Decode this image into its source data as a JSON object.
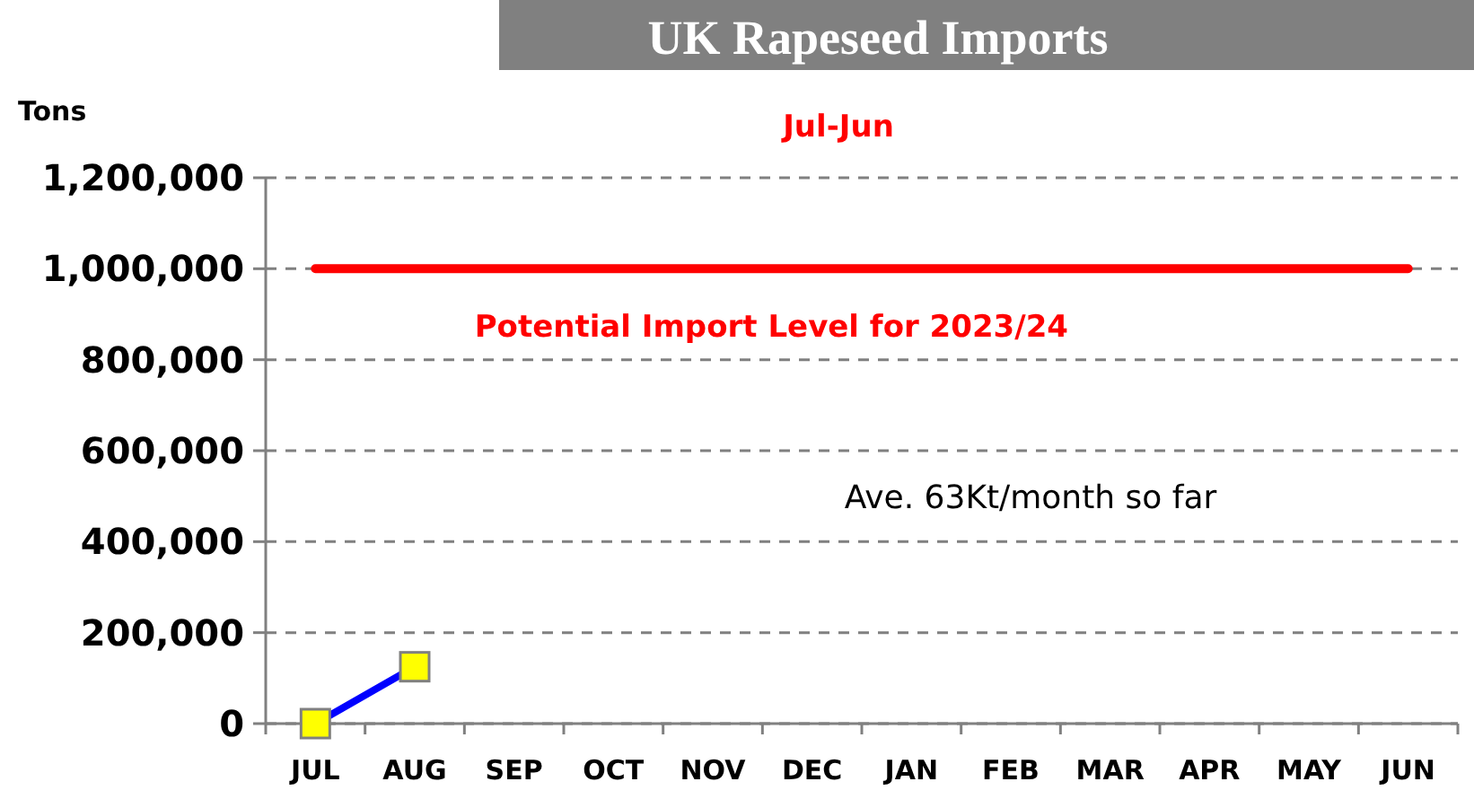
{
  "chart_data": {
    "type": "line",
    "title": "UK Rapeseed Imports",
    "subtitle": "Jul-Jun",
    "ylabel": "Tons",
    "categories": [
      "JUL",
      "AUG",
      "SEP",
      "OCT",
      "NOV",
      "DEC",
      "JAN",
      "FEB",
      "MAR",
      "APR",
      "MAY",
      "JUN"
    ],
    "series": [
      {
        "name": "Potential Import Level for 2023/24",
        "color": "#ff0000",
        "marker": "none",
        "values": [
          1000000,
          1000000,
          1000000,
          1000000,
          1000000,
          1000000,
          1000000,
          1000000,
          1000000,
          1000000,
          1000000,
          1000000
        ]
      },
      {
        "color": "#0000ff",
        "marker": "square",
        "values": [
          0,
          125000,
          null,
          null,
          null,
          null,
          null,
          null,
          null,
          null,
          null,
          null
        ]
      }
    ],
    "ylim": [
      0,
      1200000
    ],
    "yticks": [
      {
        "value": 0,
        "label": "0"
      },
      {
        "value": 200000,
        "label": "200,000"
      },
      {
        "value": 400000,
        "label": "400,000"
      },
      {
        "value": 600000,
        "label": "600,000"
      },
      {
        "value": 800000,
        "label": "800,000"
      },
      {
        "value": 1000000,
        "label": "1,000,000"
      },
      {
        "value": 1200000,
        "label": "1,200,000"
      }
    ],
    "grid": "y",
    "annotations": [
      "Ave. 63Kt/month so far"
    ]
  }
}
